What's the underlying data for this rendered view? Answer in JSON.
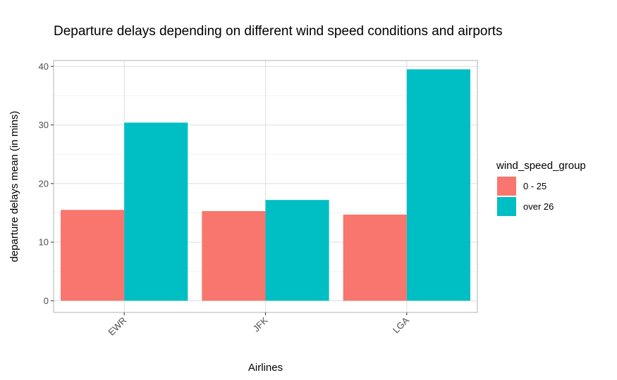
{
  "chart_data": {
    "type": "bar",
    "title": "Departure delays depending on different wind speed conditions and airports",
    "xlabel": "Airlines",
    "ylabel": "departure delays mean (in mins)",
    "categories": [
      "EWR",
      "JFK",
      "LGA"
    ],
    "series": [
      {
        "name": "0 - 25",
        "color": "#F8766D",
        "values": [
          15.5,
          15.3,
          14.7
        ]
      },
      {
        "name": "over 26",
        "color": "#00BFC4",
        "values": [
          30.4,
          17.2,
          39.5
        ]
      }
    ],
    "ylim": [
      -2,
      41
    ],
    "yticks": [
      0,
      10,
      20,
      30,
      40
    ],
    "grid": true,
    "legend": {
      "title": "wind_speed_group",
      "placement": "right"
    }
  }
}
